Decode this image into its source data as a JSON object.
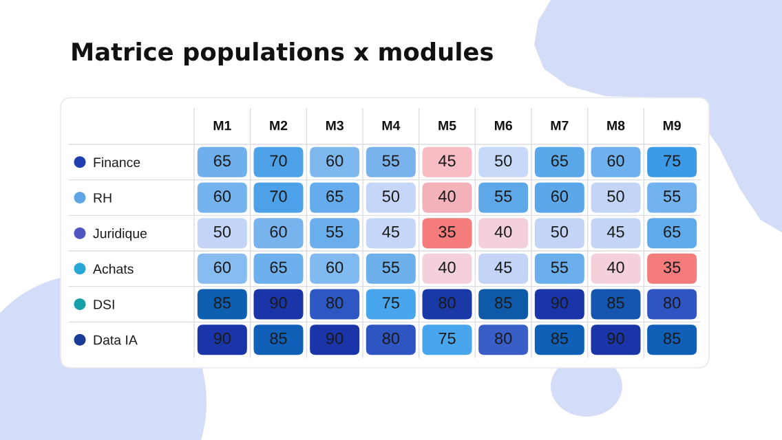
{
  "chart_data": {
    "type": "heatmap",
    "title": "Matrice populations x modules",
    "categories": [
      "M1",
      "M2",
      "M3",
      "M4",
      "M5",
      "M6",
      "M7",
      "M8",
      "M9"
    ],
    "y_categories": [
      "Finance",
      "RH",
      "Juridique",
      "Achats",
      "DSI",
      "Data IA"
    ],
    "cells": [
      [
        65,
        70,
        60,
        55,
        45,
        50,
        65,
        60,
        75
      ],
      [
        60,
        70,
        65,
        50,
        40,
        55,
        60,
        50,
        55
      ],
      [
        50,
        60,
        55,
        45,
        35,
        40,
        50,
        45,
        65
      ],
      [
        60,
        65,
        60,
        55,
        40,
        45,
        55,
        40,
        35
      ],
      [
        85,
        90,
        80,
        75,
        80,
        85,
        90,
        85,
        80
      ],
      [
        90,
        85,
        90,
        80,
        75,
        80,
        85,
        90,
        85
      ]
    ],
    "colors": [
      [
        "#6fb0ec",
        "#4ea3e8",
        "#7fb8ee",
        "#7ab3ec",
        "#f7bcc4",
        "#c8d8f8",
        "#5aa8ea",
        "#6eb1ee",
        "#3d9ae6"
      ],
      [
        "#74b3ee",
        "#4ca1e8",
        "#64acec",
        "#c5d6f8",
        "#f3b1ba",
        "#5ea8ea",
        "#5ca7ea",
        "#c3d4f6",
        "#72b2ee"
      ],
      [
        "#c3d4f7",
        "#78b3ee",
        "#6aaeec",
        "#c5d6f8",
        "#f47c7c",
        "#f3d0da",
        "#c3d4f6",
        "#c3d4f6",
        "#5eaaea"
      ],
      [
        "#86bcf0",
        "#6eb0ee",
        "#80baf0",
        "#6eb0ec",
        "#f3d0da",
        "#c3d4f6",
        "#6aaeec",
        "#f3d0da",
        "#f47c7c"
      ],
      [
        "#0f5fb0",
        "#1a35a8",
        "#2d58c4",
        "#4aa6ec",
        "#1a38a6",
        "#0f5aa8",
        "#1a35a8",
        "#1456b0",
        "#2f55c2"
      ],
      [
        "#1a35a8",
        "#1060b8",
        "#1a35a8",
        "#2f55c2",
        "#4aa6ec",
        "#3a5ec8",
        "#1060b8",
        "#1a35a8",
        "#1060b8"
      ]
    ],
    "data_labels": true,
    "grid": true
  }
}
